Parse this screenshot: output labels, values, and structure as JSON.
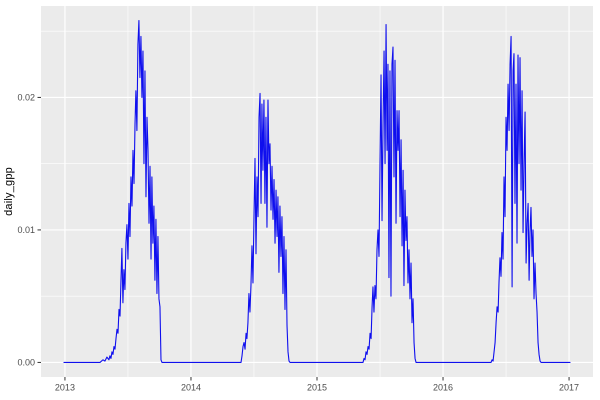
{
  "chart_data": {
    "type": "line",
    "title": "",
    "xlabel": "",
    "ylabel": "daily_gpp",
    "legend_position": "none",
    "grid": true,
    "xlim": [
      2012.81,
      2017.19
    ],
    "ylim": [
      -0.0011,
      0.0269
    ],
    "x_ticks": {
      "values": [
        2013,
        2014,
        2015,
        2016,
        2017
      ],
      "labels": [
        "2013",
        "2014",
        "2015",
        "2016",
        "2017"
      ]
    },
    "y_ticks": {
      "values": [
        0,
        0.01,
        0.02
      ],
      "labels": [
        "0.00",
        "0.01",
        "0.02"
      ]
    },
    "x_minor": [
      2013.5,
      2014.5,
      2015.5,
      2016.5
    ],
    "y_minor": [
      0.005,
      0.015,
      0.025
    ],
    "colors": {
      "line": "#0f0fee",
      "panel_bg": "#EBEBEB",
      "grid_major": "#FFFFFF",
      "grid_minor": "#FFFFFF",
      "axis_text": "#4D4D4D",
      "axis_title": "#000000",
      "tick_mark": "#333333",
      "figure_bg": "#FFFFFF"
    },
    "series": [
      {
        "name": "daily_gpp",
        "points": [
          [
            2012.992,
            0
          ],
          [
            2013.278,
            0
          ],
          [
            2013.302,
            0.0002
          ],
          [
            2013.317,
            0.0001
          ],
          [
            2013.333,
            0.0004
          ],
          [
            2013.349,
            0.0002
          ],
          [
            2013.357,
            0.0005
          ],
          [
            2013.365,
            0.0003
          ],
          [
            2013.373,
            0.0008
          ],
          [
            2013.381,
            0.0006
          ],
          [
            2013.389,
            0.0012
          ],
          [
            2013.397,
            0.001
          ],
          [
            2013.405,
            0.0018
          ],
          [
            2013.413,
            0.0025
          ],
          [
            2013.421,
            0.0022
          ],
          [
            2013.429,
            0.004
          ],
          [
            2013.437,
            0.0035
          ],
          [
            2013.444,
            0.006
          ],
          [
            2013.452,
            0.0086
          ],
          [
            2013.46,
            0.0045
          ],
          [
            2013.468,
            0.007
          ],
          [
            2013.476,
            0.0055
          ],
          [
            2013.484,
            0.009
          ],
          [
            2013.492,
            0.0104
          ],
          [
            2013.5,
            0.0078
          ],
          [
            2013.508,
            0.012
          ],
          [
            2013.516,
            0.0095
          ],
          [
            2013.524,
            0.014
          ],
          [
            2013.532,
            0.0118
          ],
          [
            2013.54,
            0.016
          ],
          [
            2013.548,
            0.0135
          ],
          [
            2013.556,
            0.018
          ],
          [
            2013.563,
            0.0205
          ],
          [
            2013.571,
            0.0175
          ],
          [
            2013.579,
            0.024
          ],
          [
            2013.587,
            0.0258
          ],
          [
            2013.595,
            0.0215
          ],
          [
            2013.603,
            0.0246
          ],
          [
            2013.611,
            0.02
          ],
          [
            2013.619,
            0.0235
          ],
          [
            2013.627,
            0.015
          ],
          [
            2013.635,
            0.022
          ],
          [
            2013.643,
            0.0125
          ],
          [
            2013.651,
            0.0185
          ],
          [
            2013.659,
            0.016
          ],
          [
            2013.667,
            0.0105
          ],
          [
            2013.675,
            0.0148
          ],
          [
            2013.683,
            0.0078
          ],
          [
            2013.69,
            0.014
          ],
          [
            2013.698,
            0.009
          ],
          [
            2013.706,
            0.0118
          ],
          [
            2013.714,
            0.0062
          ],
          [
            2013.722,
            0.0108
          ],
          [
            2013.73,
            0.0052
          ],
          [
            2013.738,
            0.0095
          ],
          [
            2013.746,
            0.0048
          ],
          [
            2013.754,
            0.0042
          ],
          [
            2013.762,
            0.0002
          ],
          [
            2013.77,
            0
          ],
          [
            2014.397,
            0
          ],
          [
            2014.405,
            0.0005
          ],
          [
            2014.413,
            0.0012
          ],
          [
            2014.421,
            0.0015
          ],
          [
            2014.429,
            0.001
          ],
          [
            2014.437,
            0.0022
          ],
          [
            2014.444,
            0.0018
          ],
          [
            2014.452,
            0.003
          ],
          [
            2014.46,
            0.0052
          ],
          [
            2014.468,
            0.0038
          ],
          [
            2014.476,
            0.0058
          ],
          [
            2014.484,
            0.0088
          ],
          [
            2014.492,
            0.006
          ],
          [
            2014.5,
            0.011
          ],
          [
            2014.508,
            0.0154
          ],
          [
            2014.516,
            0.0082
          ],
          [
            2014.524,
            0.014
          ],
          [
            2014.532,
            0.011
          ],
          [
            2014.54,
            0.0185
          ],
          [
            2014.548,
            0.0203
          ],
          [
            2014.556,
            0.012
          ],
          [
            2014.563,
            0.0195
          ],
          [
            2014.571,
            0.0145
          ],
          [
            2014.579,
            0.0198
          ],
          [
            2014.587,
            0.012
          ],
          [
            2014.595,
            0.0185
          ],
          [
            2014.603,
            0.0102
          ],
          [
            2014.611,
            0.0198
          ],
          [
            2014.619,
            0.015
          ],
          [
            2014.627,
            0.0165
          ],
          [
            2014.635,
            0.0115
          ],
          [
            2014.643,
            0.0148
          ],
          [
            2014.651,
            0.0108
          ],
          [
            2014.659,
            0.0138
          ],
          [
            2014.667,
            0.009
          ],
          [
            2014.675,
            0.013
          ],
          [
            2014.683,
            0.0095
          ],
          [
            2014.69,
            0.0125
          ],
          [
            2014.698,
            0.0068
          ],
          [
            2014.706,
            0.0118
          ],
          [
            2014.714,
            0.008
          ],
          [
            2014.722,
            0.011
          ],
          [
            2014.73,
            0.0052
          ],
          [
            2014.738,
            0.0095
          ],
          [
            2014.746,
            0.004
          ],
          [
            2014.754,
            0.0085
          ],
          [
            2014.762,
            0.0028
          ],
          [
            2014.77,
            0.0008
          ],
          [
            2014.778,
            0.0001
          ],
          [
            2014.786,
            0
          ],
          [
            2015.365,
            0
          ],
          [
            2015.373,
            0.0003
          ],
          [
            2015.381,
            0.0002
          ],
          [
            2015.389,
            0.0008
          ],
          [
            2015.397,
            0.0006
          ],
          [
            2015.405,
            0.0012
          ],
          [
            2015.413,
            0.001
          ],
          [
            2015.421,
            0.0022
          ],
          [
            2015.429,
            0.0018
          ],
          [
            2015.437,
            0.0042
          ],
          [
            2015.444,
            0.0057
          ],
          [
            2015.452,
            0.0038
          ],
          [
            2015.46,
            0.0058
          ],
          [
            2015.468,
            0.0048
          ],
          [
            2015.476,
            0.0085
          ],
          [
            2015.484,
            0.01
          ],
          [
            2015.492,
            0.008
          ],
          [
            2015.5,
            0.015
          ],
          [
            2015.508,
            0.0217
          ],
          [
            2015.516,
            0.0107
          ],
          [
            2015.524,
            0.018
          ],
          [
            2015.532,
            0.0235
          ],
          [
            2015.54,
            0.015
          ],
          [
            2015.548,
            0.0255
          ],
          [
            2015.556,
            0.016
          ],
          [
            2015.563,
            0.0225
          ],
          [
            2015.571,
            0.0064
          ],
          [
            2015.579,
            0.022
          ],
          [
            2015.587,
            0.005
          ],
          [
            2015.595,
            0.0225
          ],
          [
            2015.603,
            0.0238
          ],
          [
            2015.611,
            0.014
          ],
          [
            2015.619,
            0.0228
          ],
          [
            2015.627,
            0.0105
          ],
          [
            2015.635,
            0.019
          ],
          [
            2015.643,
            0.016
          ],
          [
            2015.651,
            0.019
          ],
          [
            2015.659,
            0.011
          ],
          [
            2015.667,
            0.0168
          ],
          [
            2015.675,
            0.0088
          ],
          [
            2015.683,
            0.0145
          ],
          [
            2015.69,
            0.0058
          ],
          [
            2015.698,
            0.013
          ],
          [
            2015.706,
            0.0092
          ],
          [
            2015.714,
            0.011
          ],
          [
            2015.722,
            0.006
          ],
          [
            2015.73,
            0.0085
          ],
          [
            2015.738,
            0.0048
          ],
          [
            2015.746,
            0.0075
          ],
          [
            2015.754,
            0.003
          ],
          [
            2015.762,
            0.0048
          ],
          [
            2015.77,
            0.0015
          ],
          [
            2015.778,
            0.0003
          ],
          [
            2015.786,
            0
          ],
          [
            2016.381,
            0
          ],
          [
            2016.389,
            0.0002
          ],
          [
            2016.397,
            0.0001
          ],
          [
            2016.405,
            0.0008
          ],
          [
            2016.413,
            0.0015
          ],
          [
            2016.421,
            0.003
          ],
          [
            2016.429,
            0.0042
          ],
          [
            2016.437,
            0.0038
          ],
          [
            2016.444,
            0.006
          ],
          [
            2016.452,
            0.0079
          ],
          [
            2016.46,
            0.0065
          ],
          [
            2016.468,
            0.0098
          ],
          [
            2016.476,
            0.0078
          ],
          [
            2016.484,
            0.014
          ],
          [
            2016.492,
            0.011
          ],
          [
            2016.5,
            0.0185
          ],
          [
            2016.508,
            0.016
          ],
          [
            2016.516,
            0.021
          ],
          [
            2016.524,
            0.0175
          ],
          [
            2016.532,
            0.0225
          ],
          [
            2016.54,
            0.0246
          ],
          [
            2016.548,
            0.0057
          ],
          [
            2016.556,
            0.022
          ],
          [
            2016.563,
            0.0233
          ],
          [
            2016.571,
            0.012
          ],
          [
            2016.579,
            0.021
          ],
          [
            2016.587,
            0.009
          ],
          [
            2016.595,
            0.0232
          ],
          [
            2016.603,
            0.015
          ],
          [
            2016.611,
            0.023
          ],
          [
            2016.619,
            0.013
          ],
          [
            2016.627,
            0.0205
          ],
          [
            2016.635,
            0.0098
          ],
          [
            2016.643,
            0.015
          ],
          [
            2016.651,
            0.0189
          ],
          [
            2016.659,
            0.0075
          ],
          [
            2016.667,
            0.0105
          ],
          [
            2016.675,
            0.012
          ],
          [
            2016.683,
            0.0062
          ],
          [
            2016.69,
            0.0098
          ],
          [
            2016.698,
            0.0117
          ],
          [
            2016.706,
            0.008
          ],
          [
            2016.714,
            0.01
          ],
          [
            2016.722,
            0.0048
          ],
          [
            2016.73,
            0.0075
          ],
          [
            2016.738,
            0.0052
          ],
          [
            2016.746,
            0.0038
          ],
          [
            2016.754,
            0.0015
          ],
          [
            2016.762,
            0.0006
          ],
          [
            2016.77,
            0.0001
          ],
          [
            2016.778,
            0
          ],
          [
            2017.008,
            0
          ]
        ]
      }
    ]
  }
}
